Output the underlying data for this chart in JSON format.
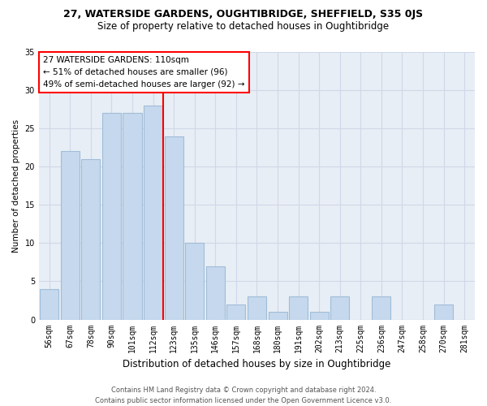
{
  "title1": "27, WATERSIDE GARDENS, OUGHTIBRIDGE, SHEFFIELD, S35 0JS",
  "title2": "Size of property relative to detached houses in Oughtibridge",
  "xlabel": "Distribution of detached houses by size in Oughtibridge",
  "ylabel": "Number of detached properties",
  "footnote": "Contains HM Land Registry data © Crown copyright and database right 2024.\nContains public sector information licensed under the Open Government Licence v3.0.",
  "categories": [
    "56sqm",
    "67sqm",
    "78sqm",
    "90sqm",
    "101sqm",
    "112sqm",
    "123sqm",
    "135sqm",
    "146sqm",
    "157sqm",
    "168sqm",
    "180sqm",
    "191sqm",
    "202sqm",
    "213sqm",
    "225sqm",
    "236sqm",
    "247sqm",
    "258sqm",
    "270sqm",
    "281sqm"
  ],
  "values": [
    4,
    22,
    21,
    27,
    27,
    28,
    24,
    10,
    7,
    2,
    3,
    1,
    3,
    1,
    3,
    0,
    3,
    0,
    0,
    2,
    0
  ],
  "bar_color": "#c5d8ed",
  "bar_edge_color": "#a0bdd8",
  "grid_color": "#d0d8e8",
  "background_color": "#e8eef5",
  "vline_color": "red",
  "vline_x_index": 5.5,
  "annotation_text": "27 WATERSIDE GARDENS: 110sqm\n← 51% of detached houses are smaller (96)\n49% of semi-detached houses are larger (92) →",
  "ylim": [
    0,
    35
  ],
  "yticks": [
    0,
    5,
    10,
    15,
    20,
    25,
    30,
    35
  ],
  "title1_fontsize": 9,
  "title2_fontsize": 8.5,
  "xlabel_fontsize": 8.5,
  "ylabel_fontsize": 7.5,
  "tick_fontsize": 7,
  "footnote_fontsize": 6
}
